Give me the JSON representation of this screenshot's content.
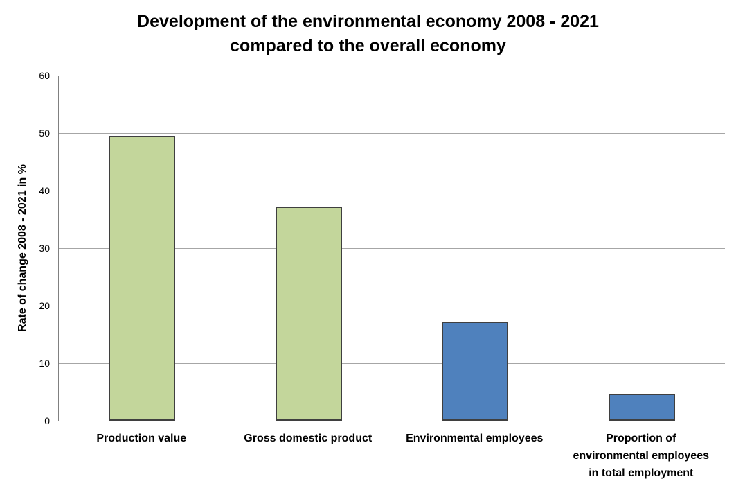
{
  "chart_data": {
    "type": "bar",
    "title": "Development of the environmental economy 2008 - 2021\ncompared to the overall economy",
    "ylabel": "Rate of change 2008 - 2021 in %",
    "xlabel": "",
    "categories": [
      "Production value",
      "Gross domestic product",
      "Environmental employees",
      "Proportion of\nenvironmental employees\nin total employment"
    ],
    "values": [
      49.5,
      37.2,
      17.2,
      4.7
    ],
    "bar_colors": [
      "#c3d69b",
      "#c3d69b",
      "#4f81bd",
      "#4f81bd"
    ],
    "bar_border_color": "#3f3f3f",
    "ylim": [
      0,
      60
    ],
    "y_ticks": [
      0,
      10,
      20,
      30,
      40,
      50,
      60
    ],
    "grid": "horizontal",
    "gridline_color": "#a6a6a6",
    "axis_line_color": "#808080",
    "legend": "none",
    "background": "#ffffff"
  }
}
